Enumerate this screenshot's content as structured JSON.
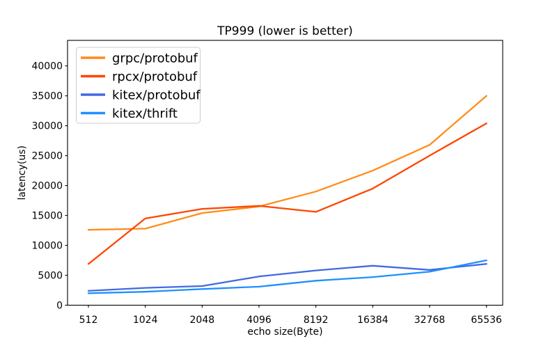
{
  "figure": {
    "background": "#ffffff",
    "spine_color": "#000000",
    "legend_border_color": "#cccccc",
    "text_color": "#000000"
  },
  "chart_data": {
    "type": "line",
    "title": "TP999 (lower is better)",
    "xlabel": "echo size(Byte)",
    "ylabel": "latency(us)",
    "categories": [
      "512",
      "1024",
      "2048",
      "4096",
      "8192",
      "16384",
      "32768",
      "65536"
    ],
    "yticks": [
      0,
      5000,
      10000,
      15000,
      20000,
      25000,
      30000,
      35000,
      40000
    ],
    "ylim": [
      0,
      44300
    ],
    "grid": false,
    "legend_position": "upper-left",
    "series": [
      {
        "name": "grpc/protobuf",
        "color": "#FF8C1A",
        "values": [
          12600,
          12800,
          15400,
          16500,
          19000,
          22500,
          26800,
          35000
        ]
      },
      {
        "name": "rpcx/protobuf",
        "color": "#FF4500",
        "values": [
          6900,
          14500,
          16100,
          16600,
          15600,
          19500,
          25000,
          30400
        ]
      },
      {
        "name": "kitex/protobuf",
        "color": "#4169E1",
        "values": [
          2400,
          2900,
          3200,
          4800,
          5800,
          6600,
          5900,
          6900
        ]
      },
      {
        "name": "kitex/thrift",
        "color": "#1E90FF",
        "values": [
          2000,
          2250,
          2700,
          3100,
          4100,
          4700,
          5600,
          7500
        ]
      }
    ]
  }
}
